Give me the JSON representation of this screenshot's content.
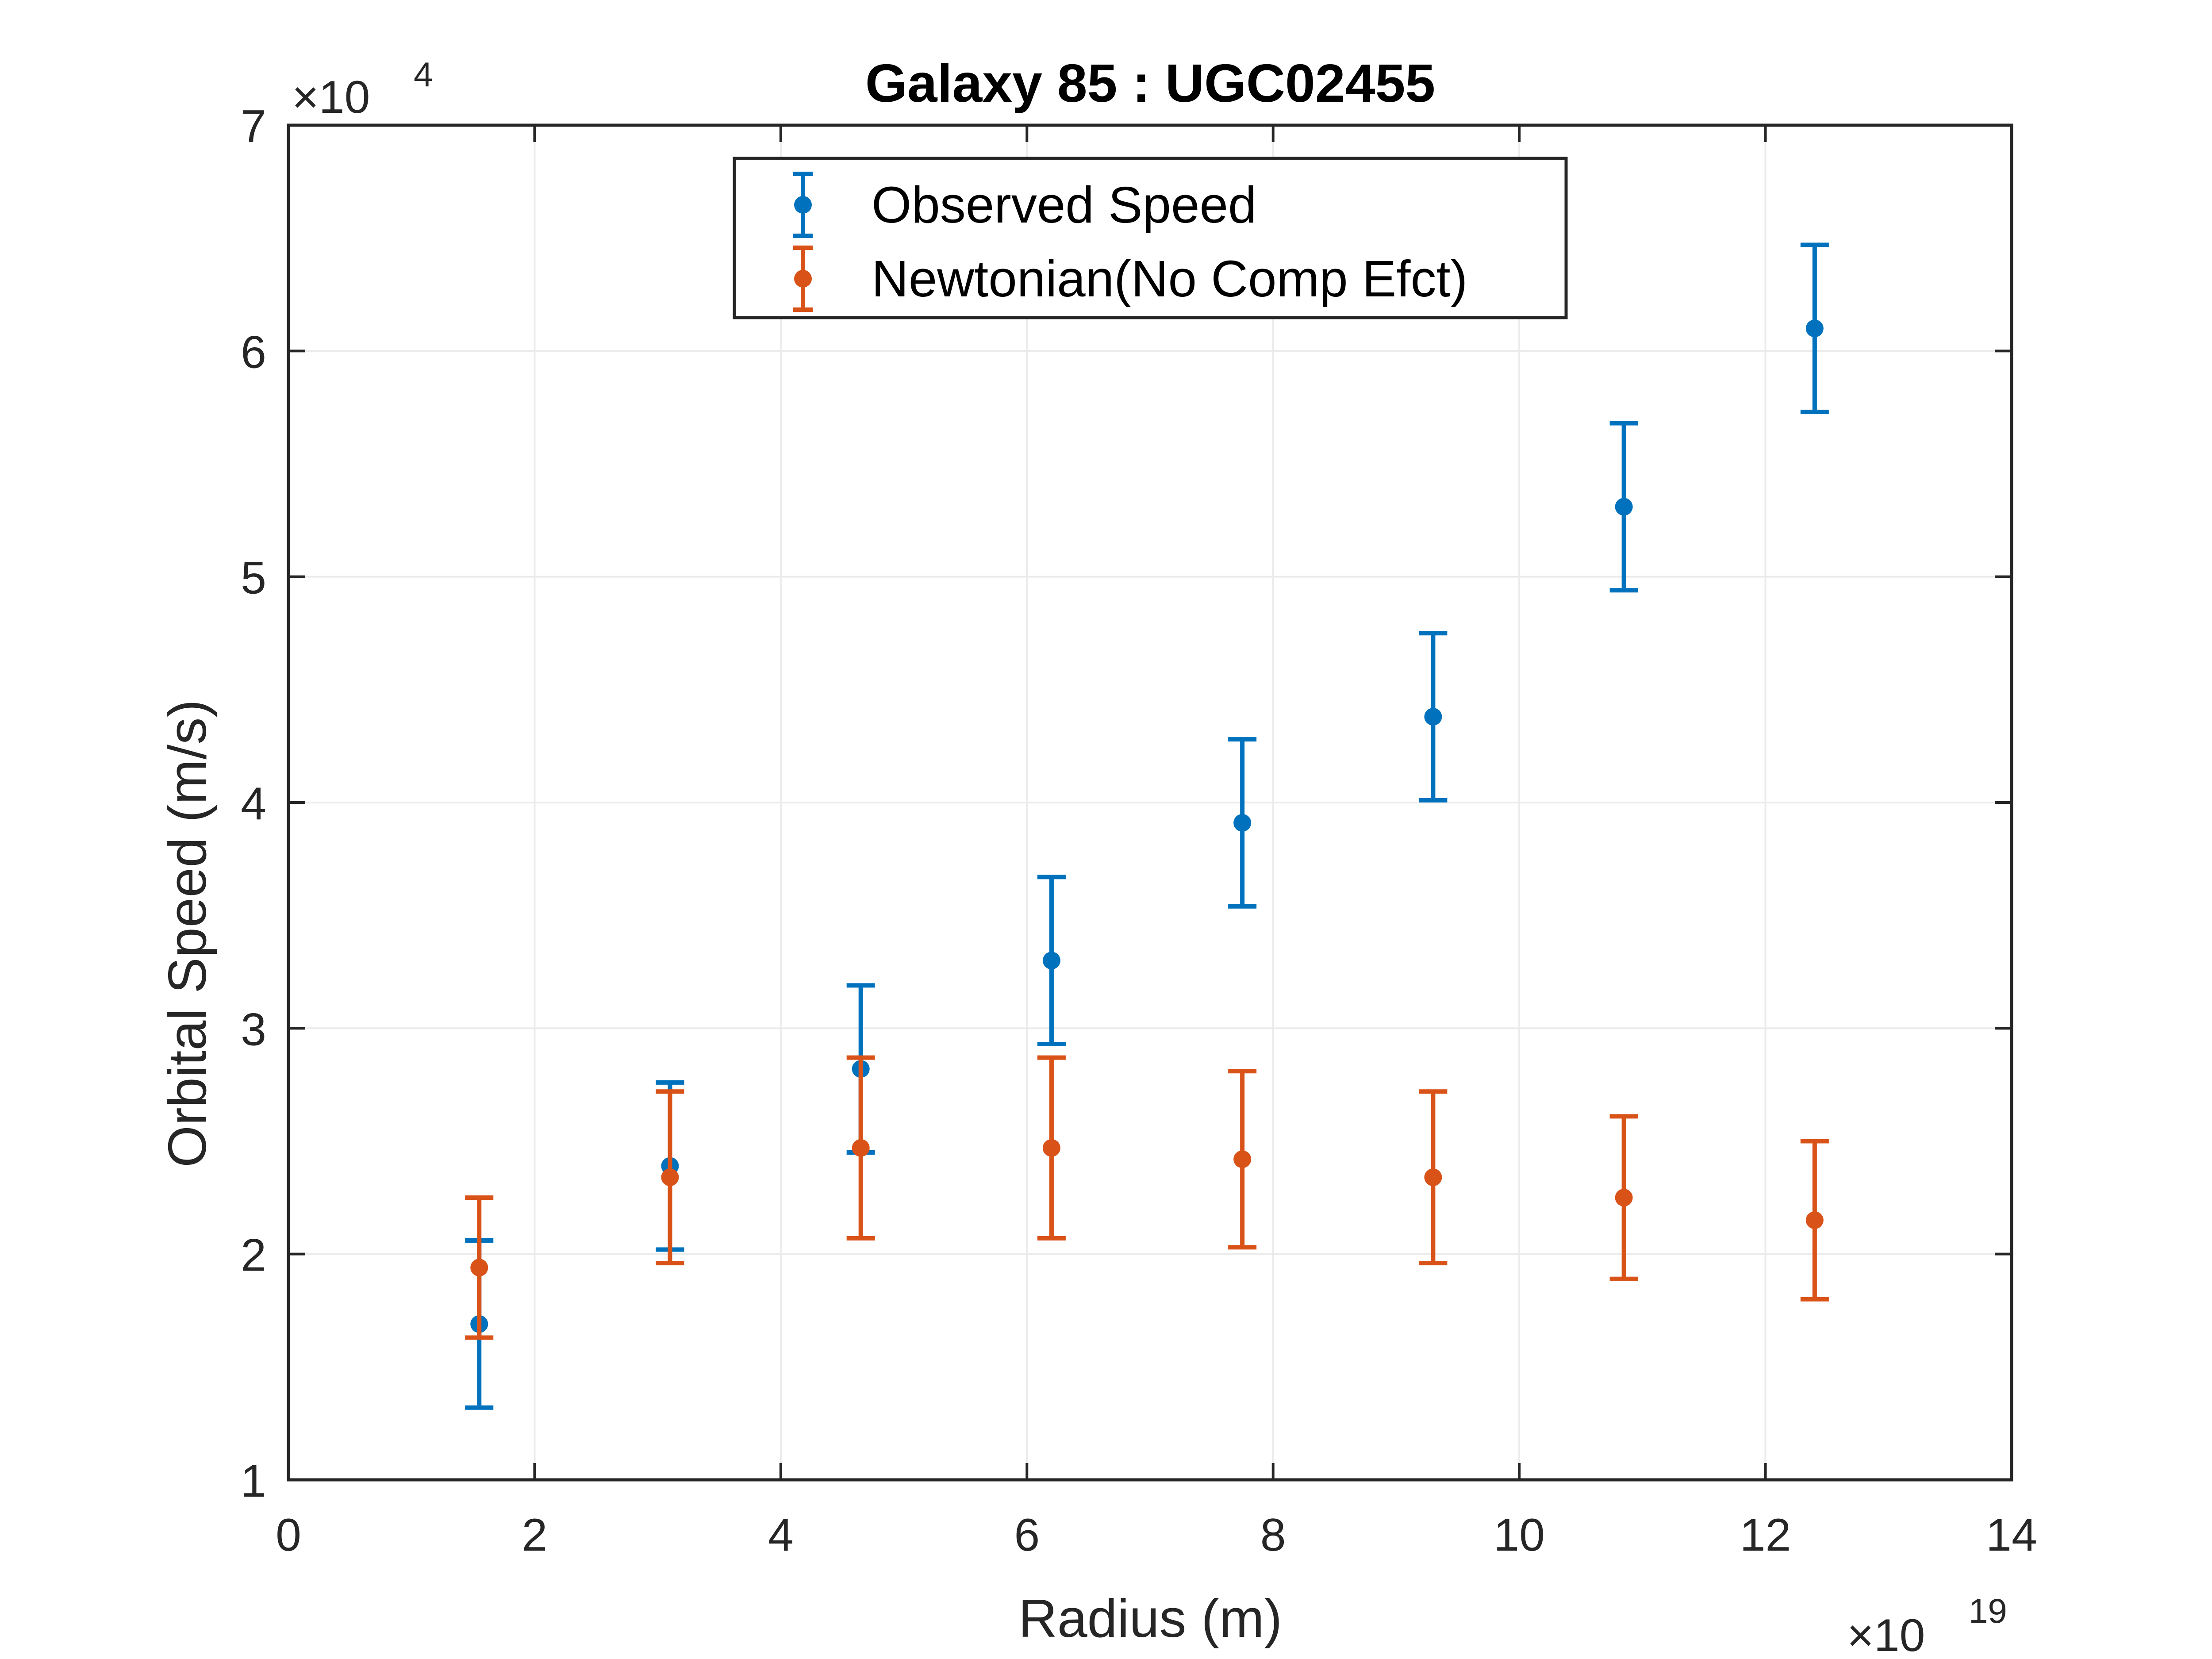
{
  "chart_data": {
    "type": "scatter",
    "title": "Galaxy 85 : UGC02455",
    "xlabel": "Radius (m)",
    "ylabel": "Orbital Speed (m/s)",
    "x_multiplier": {
      "base": "×10",
      "exp": "19"
    },
    "y_multiplier": {
      "base": "×10",
      "exp": "4"
    },
    "xlim": [
      0,
      14
    ],
    "ylim": [
      1,
      7
    ],
    "x_ticks": [
      "0",
      "2",
      "4",
      "6",
      "8",
      "10",
      "12",
      "14"
    ],
    "y_ticks": [
      "1",
      "2",
      "3",
      "4",
      "5",
      "6",
      "7"
    ],
    "grid": true,
    "legend_position": "top-center",
    "x": [
      1.55,
      3.1,
      4.65,
      6.2,
      7.75,
      9.3,
      10.85,
      12.4
    ],
    "series": [
      {
        "name": "Observed Speed",
        "color": "#0072BD",
        "y": [
          1.69,
          2.39,
          2.82,
          3.3,
          3.91,
          4.38,
          5.31,
          6.1
        ],
        "err": [
          0.37,
          0.37,
          0.37,
          0.37,
          0.37,
          0.37,
          0.37,
          0.37
        ]
      },
      {
        "name": "Newtonian(No Comp Efct)",
        "color": "#D95319",
        "y": [
          1.94,
          2.34,
          2.47,
          2.47,
          2.42,
          2.34,
          2.25,
          2.15
        ],
        "err": [
          0.31,
          0.38,
          0.4,
          0.4,
          0.39,
          0.38,
          0.36,
          0.35
        ]
      }
    ]
  }
}
